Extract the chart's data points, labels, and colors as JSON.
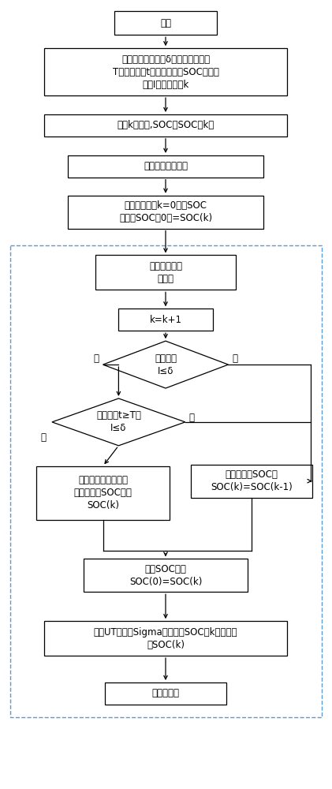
{
  "bg_color": "#ffffff",
  "box_color": "#ffffff",
  "box_border": "#000000",
  "loop_border": "#5b9bd5",
  "arrow_color": "#000000",
  "text_color": "#000000",
  "font_size": 8.5,
  "nodes": {
    "start": {
      "label": "开始"
    },
    "init": {
      "label": "定义最小工作电流δ，电池静置时间\nT，测量时间t，电池电荷量SOC，测量\n电流I，采样时刻k"
    },
    "def_soc": {
      "label": "定义k时刻时,SOC为SOC（k）"
    },
    "measure_oc": {
      "label": "测量电池开路电压"
    },
    "get_soc0": {
      "label": "得到初始时刻k=0时，SOC\n初始值SOC（0）=SOC(k)"
    },
    "detect": {
      "label": "电池组电流电\n压检测"
    },
    "kk1": {
      "label": "k=k+1"
    },
    "judge_I": {
      "label": "判断电流\nI≤δ"
    },
    "judge_t": {
      "label": "测量时间t≥T且\nI≤δ"
    },
    "soc_volt": {
      "label": "通过测量得到电池组\n端电压确定SOC值为\nSOC(k)"
    },
    "soc_prev": {
      "label": "前一时刻的SOC值\nSOC(k)=SOC(k-1)"
    },
    "cur_soc": {
      "label": "当前SOC值为\nSOC(0)=SOC(k)"
    },
    "ut_sigma": {
      "label": "通过UT变据和Sigma采样得到SOC在k时刻的值\n为SOC(k)"
    },
    "output": {
      "label": "输出并显示"
    }
  }
}
